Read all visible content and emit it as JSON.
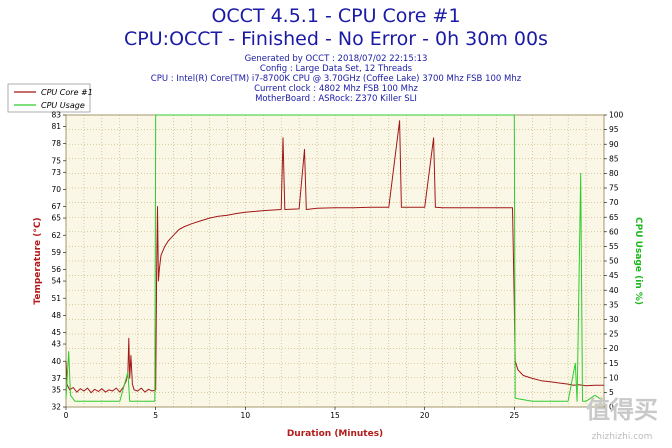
{
  "header": {
    "title": "OCCT 4.5.1 - CPU Core #1",
    "subtitle": "CPU:OCCT - Finished - No Error - 0h 30m 00s",
    "info_lines": [
      "Generated by OCCT : 2018/07/02 22:15:13",
      "Config : Large Data Set, 12 Threads",
      "CPU : Intel(R) Core(TM) i7-8700K CPU @ 3.70GHz (Coffee Lake) 3700 Mhz FSB 100 Mhz",
      "Current clock : 4802 Mhz FSB 100 Mhz",
      "MotherBoard : ASRock: Z370 Killer SLI"
    ]
  },
  "watermark": {
    "logo": "值得买",
    "url": "zhizhizhi.com"
  },
  "colors": {
    "temperature": "#a01818",
    "usage": "#2ecc2e",
    "plot_bg": "#fbf7e6",
    "grid": "#b89e5a",
    "title": "#1a1aa6"
  },
  "chart_data": {
    "type": "line",
    "xlabel": "Duration (Minutes)",
    "ylabel_left": "Temperature (°C)",
    "ylabel_right": "CPU Usage (in %)",
    "xlim": [
      0,
      30
    ],
    "ylim_left": [
      32,
      83
    ],
    "ylim_right": [
      0,
      100
    ],
    "x_ticks": [
      0,
      5,
      10,
      15,
      20,
      25
    ],
    "y_left_ticks": [
      32,
      35,
      37,
      40,
      43,
      45,
      48,
      51,
      54,
      56,
      59,
      62,
      65,
      67,
      70,
      73,
      75,
      78,
      81,
      83
    ],
    "y_right_ticks": [
      0,
      5,
      10,
      15,
      20,
      25,
      30,
      35,
      40,
      45,
      50,
      55,
      60,
      65,
      70,
      75,
      80,
      85,
      90,
      95,
      100
    ],
    "grid": true,
    "legend_position": "top-left",
    "series": [
      {
        "name": "CPU Core #1",
        "axis": "left",
        "points": [
          [
            0.0,
            40.0
          ],
          [
            0.05,
            36.0
          ],
          [
            0.2,
            35.0
          ],
          [
            0.4,
            35.4
          ],
          [
            0.6,
            34.6
          ],
          [
            0.8,
            35.2
          ],
          [
            1.0,
            34.8
          ],
          [
            1.2,
            35.3
          ],
          [
            1.4,
            34.5
          ],
          [
            1.6,
            35.1
          ],
          [
            1.8,
            34.7
          ],
          [
            2.0,
            35.2
          ],
          [
            2.2,
            34.6
          ],
          [
            2.4,
            35.0
          ],
          [
            2.6,
            34.8
          ],
          [
            2.8,
            35.3
          ],
          [
            3.0,
            34.6
          ],
          [
            3.2,
            35.5
          ],
          [
            3.35,
            36.5
          ],
          [
            3.45,
            38.0
          ],
          [
            3.5,
            44.0
          ],
          [
            3.55,
            37.0
          ],
          [
            3.62,
            41.0
          ],
          [
            3.7,
            36.0
          ],
          [
            3.8,
            35.0
          ],
          [
            4.0,
            34.8
          ],
          [
            4.2,
            35.3
          ],
          [
            4.4,
            34.6
          ],
          [
            4.6,
            35.1
          ],
          [
            4.8,
            34.8
          ],
          [
            5.0,
            35.0
          ],
          [
            5.05,
            55.0
          ],
          [
            5.1,
            67.0
          ],
          [
            5.15,
            54.0
          ],
          [
            5.2,
            56.0
          ],
          [
            5.3,
            58.5
          ],
          [
            5.5,
            60.0
          ],
          [
            5.7,
            61.0
          ],
          [
            6.0,
            62.0
          ],
          [
            6.3,
            63.0
          ],
          [
            6.6,
            63.5
          ],
          [
            7.0,
            64.0
          ],
          [
            7.5,
            64.5
          ],
          [
            8.0,
            65.0
          ],
          [
            8.5,
            65.3
          ],
          [
            9.0,
            65.5
          ],
          [
            9.5,
            65.8
          ],
          [
            10.0,
            66.0
          ],
          [
            11.0,
            66.3
          ],
          [
            12.0,
            66.5
          ],
          [
            12.1,
            79.0
          ],
          [
            12.2,
            66.5
          ],
          [
            13.0,
            66.6
          ],
          [
            13.3,
            77.0
          ],
          [
            13.4,
            66.5
          ],
          [
            14.0,
            66.7
          ],
          [
            15.0,
            66.8
          ],
          [
            16.0,
            66.8
          ],
          [
            17.0,
            66.9
          ],
          [
            18.0,
            66.9
          ],
          [
            18.6,
            82.0
          ],
          [
            18.7,
            66.9
          ],
          [
            19.0,
            66.9
          ],
          [
            20.0,
            66.9
          ],
          [
            20.5,
            79.0
          ],
          [
            20.6,
            66.9
          ],
          [
            21.0,
            66.8
          ],
          [
            22.0,
            66.8
          ],
          [
            23.0,
            66.8
          ],
          [
            24.0,
            66.8
          ],
          [
            24.9,
            66.8
          ],
          [
            25.0,
            50.0
          ],
          [
            25.05,
            40.0
          ],
          [
            25.2,
            38.5
          ],
          [
            25.5,
            37.5
          ],
          [
            26.0,
            37.0
          ],
          [
            26.5,
            36.6
          ],
          [
            27.0,
            36.4
          ],
          [
            27.5,
            36.2
          ],
          [
            28.0,
            36.0
          ],
          [
            28.3,
            35.8
          ],
          [
            28.6,
            35.9
          ],
          [
            29.0,
            35.7
          ],
          [
            29.5,
            35.8
          ],
          [
            30.0,
            35.8
          ]
        ]
      },
      {
        "name": "CPU Usage",
        "axis": "right",
        "points": [
          [
            0.0,
            3
          ],
          [
            0.15,
            19
          ],
          [
            0.25,
            4
          ],
          [
            0.5,
            2
          ],
          [
            1.0,
            2
          ],
          [
            1.5,
            2
          ],
          [
            2.0,
            2
          ],
          [
            2.5,
            2
          ],
          [
            3.0,
            2
          ],
          [
            3.45,
            12
          ],
          [
            3.55,
            2
          ],
          [
            4.0,
            2
          ],
          [
            4.5,
            2
          ],
          [
            4.95,
            2
          ],
          [
            5.0,
            100
          ],
          [
            25.0,
            100
          ],
          [
            25.05,
            3
          ],
          [
            26.0,
            2
          ],
          [
            27.0,
            2
          ],
          [
            27.5,
            2
          ],
          [
            28.0,
            2
          ],
          [
            28.4,
            15
          ],
          [
            28.5,
            2
          ],
          [
            28.7,
            80
          ],
          [
            28.8,
            2
          ],
          [
            29.0,
            2
          ],
          [
            29.5,
            4
          ],
          [
            30.0,
            2
          ]
        ]
      }
    ]
  }
}
